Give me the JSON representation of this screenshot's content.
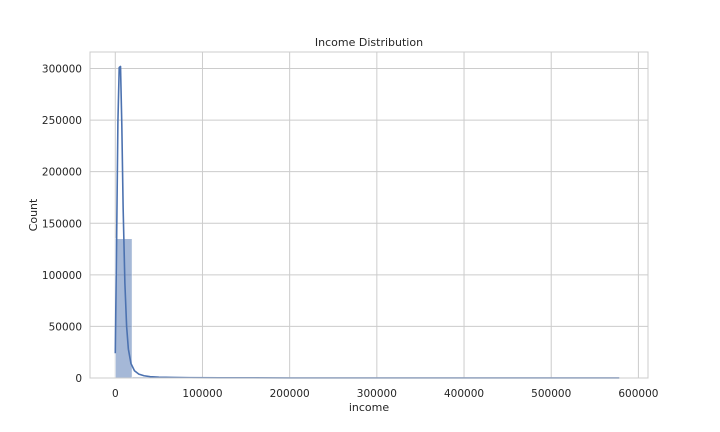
{
  "chart_data": {
    "type": "bar",
    "title": "Income Distribution",
    "xlabel": "income",
    "ylabel": "Count",
    "xlim": [
      -29000,
      611000
    ],
    "ylim": [
      0,
      316000
    ],
    "xticks": [
      0,
      100000,
      200000,
      300000,
      400000,
      500000,
      600000
    ],
    "yticks": [
      0,
      50000,
      100000,
      150000,
      200000,
      250000,
      300000
    ],
    "grid": true,
    "histogram": {
      "bin_width": 19300,
      "bins": [
        {
          "start": 0,
          "end": 19300,
          "count": 135000
        },
        {
          "start": 19300,
          "end": 38600,
          "count": 1100
        },
        {
          "start": 38600,
          "end": 57900,
          "count": 300
        },
        {
          "start": 57900,
          "end": 77200,
          "count": 120
        },
        {
          "start": 77200,
          "end": 96500,
          "count": 60
        },
        {
          "start": 96500,
          "end": 578000,
          "count": 0
        }
      ]
    },
    "kde": {
      "x": [
        0,
        1500,
        3000,
        4500,
        6000,
        7500,
        9000,
        11000,
        13000,
        15000,
        18000,
        22000,
        27000,
        33000,
        40000,
        50000,
        65000,
        85000,
        120000,
        200000,
        300000,
        400000,
        500000,
        578000
      ],
      "y": [
        24000,
        130000,
        248000,
        301000,
        302000,
        245000,
        165000,
        92000,
        50000,
        28000,
        14000,
        7000,
        3800,
        2200,
        1300,
        800,
        500,
        300,
        200,
        100,
        60,
        40,
        30,
        20
      ]
    },
    "colors": {
      "bar_fill": "#4c72b0",
      "bar_fill_opacity": 0.5,
      "line": "#4c72b0",
      "grid": "#cccccc",
      "frame": "#cccccc"
    }
  }
}
